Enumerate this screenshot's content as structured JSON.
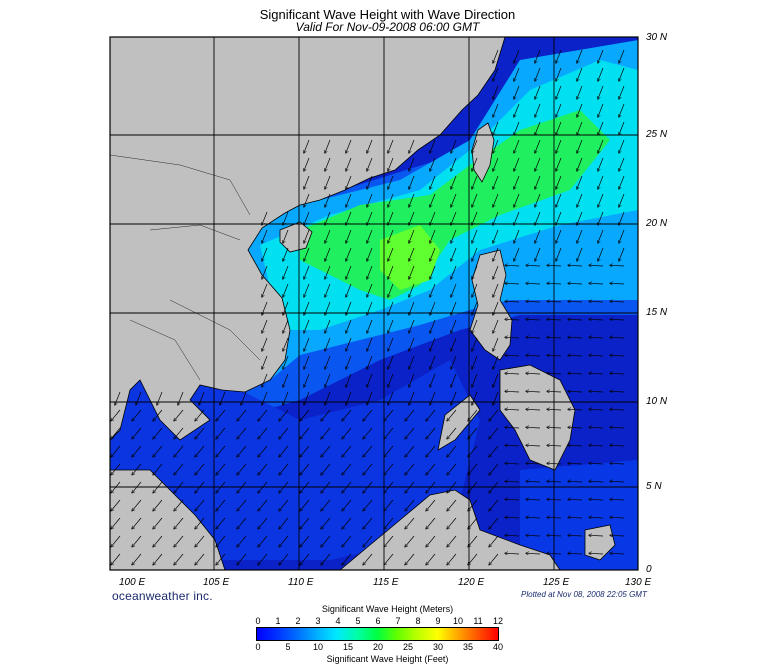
{
  "title": "Significant Wave Height with Wave Direction",
  "subtitle": "Valid For Nov-09-2008 06:00 GMT",
  "lon_labels": [
    "100 E",
    "105 E",
    "110 E",
    "115 E",
    "120 E",
    "125 E",
    "130 E"
  ],
  "lat_labels": [
    "30 N",
    "25 N",
    "20 N",
    "15 N",
    "10 N",
    "5 N",
    "0"
  ],
  "brand": "oceanweather inc.",
  "plotted": "Plotted at Nov 08, 2008 22:05 GMT",
  "colorbar": {
    "meters_title": "Significant Wave Height (Meters)",
    "meters_ticks": [
      "0",
      "1",
      "2",
      "3",
      "4",
      "5",
      "6",
      "7",
      "8",
      "9",
      "10",
      "11",
      "12"
    ],
    "feet_title": "Significant Wave Height (Feet)",
    "feet_ticks": [
      "0",
      "5",
      "10",
      "15",
      "20",
      "25",
      "30",
      "35",
      "40"
    ]
  },
  "map": {
    "extent": {
      "lon": [
        99,
        130
      ],
      "lat": [
        0,
        30
      ]
    },
    "land_color": "#c0c0c0",
    "coast_color": "#000000",
    "wave_colors": {
      "low": "#0000ff",
      "mid": "#00a0ff",
      "high": "#00ff60"
    },
    "arrow_color": "#000000"
  }
}
